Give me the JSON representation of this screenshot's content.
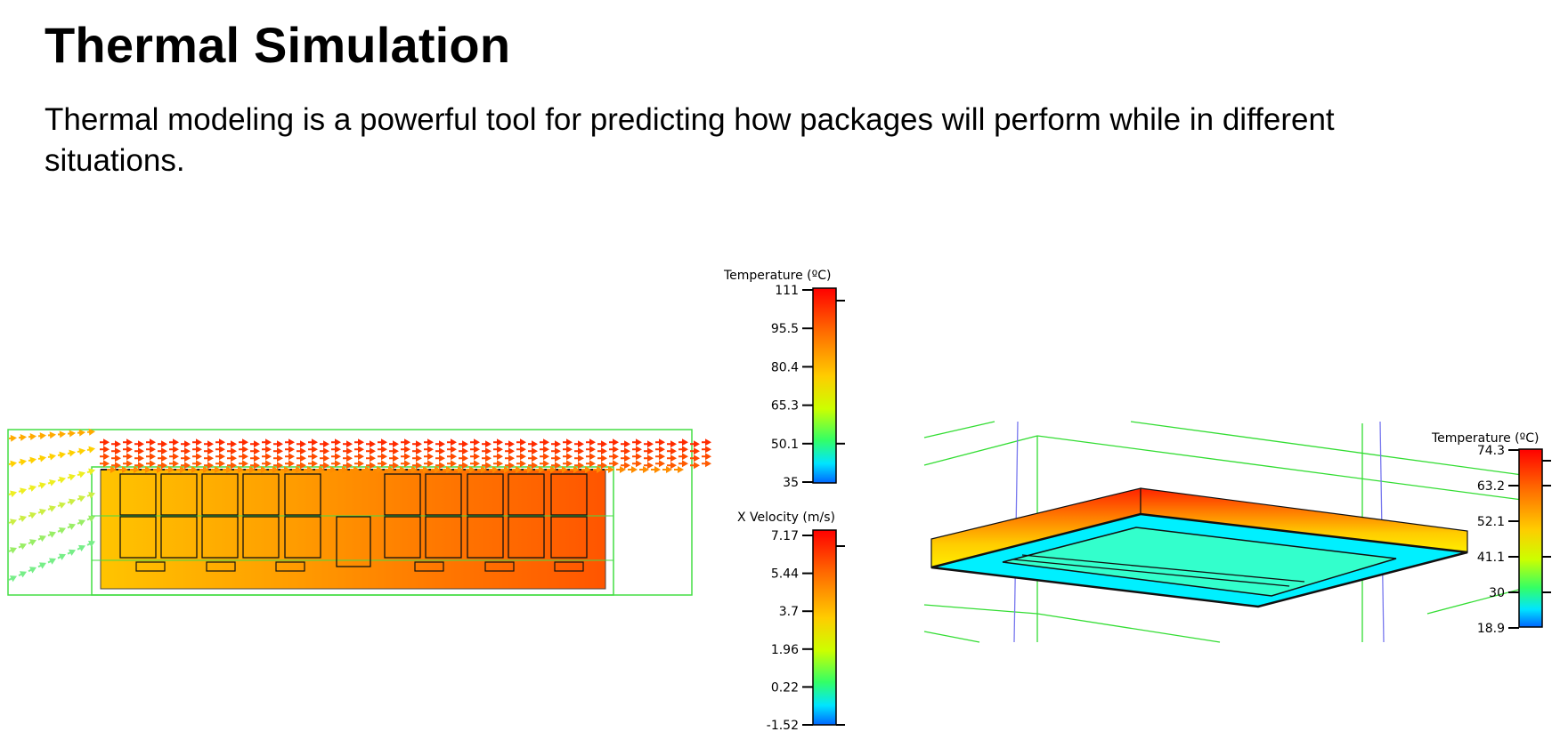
{
  "page": {
    "title": "Thermal Simulation",
    "subtitle": "Thermal modeling is a powerful tool for predicting how packages will perform while in different situations."
  },
  "legends": [
    {
      "title": "Temperature (ºC)",
      "ticks": [
        "111",
        "95.5",
        "80.4",
        "65.3",
        "50.1",
        "35"
      ]
    },
    {
      "title": "X Velocity (m/s)",
      "ticks": [
        "7.17",
        "5.44",
        "3.7",
        "1.96",
        "0.22",
        "-1.52"
      ]
    },
    {
      "title": "Temperature (ºC)",
      "ticks": [
        "74.3",
        "63.2",
        "52.1",
        "41.1",
        "30",
        "18.9"
      ]
    }
  ],
  "colors": {
    "flow_boundary": "#33dd33",
    "package_outline": "#111111",
    "scale_top": "#ff0000",
    "scale_bottom": "#0066ff",
    "board_top_surface": "#00f0ff",
    "board_die_area": "#33ffcc",
    "axis_line": "#6666ff"
  }
}
